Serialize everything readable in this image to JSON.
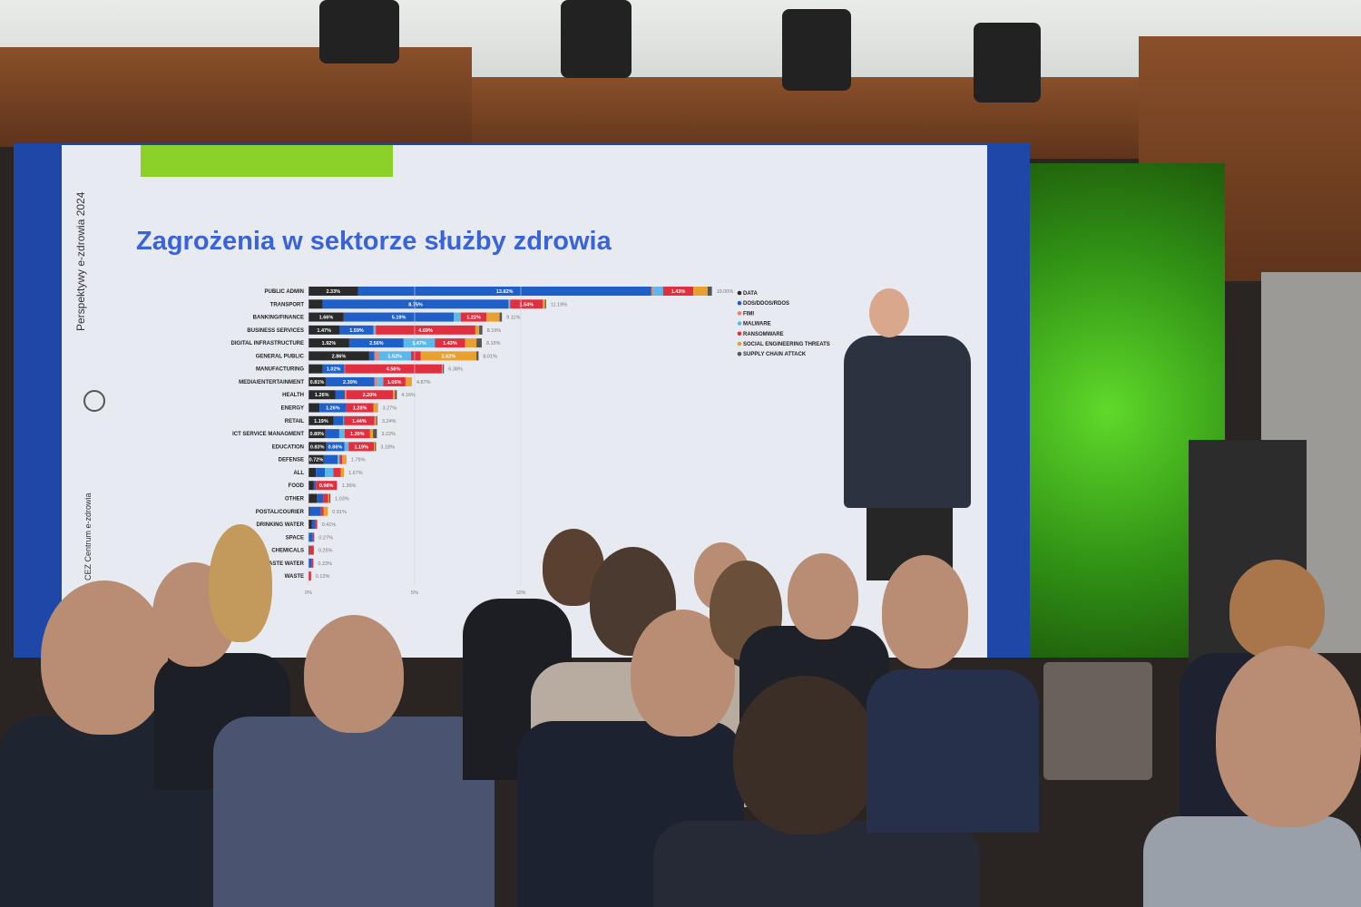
{
  "slide": {
    "title": "Zagrożenia w sektorze służby zdrowia",
    "side_text": "Perspektywy e-zdrowia 2024",
    "logo_text": "CEZ Centrum e-zdrowia"
  },
  "chart_data": {
    "type": "bar",
    "orientation": "horizontal",
    "stacked": true,
    "legend_position": "right",
    "categories": [
      "PUBLIC ADMIN",
      "TRANSPORT",
      "BANKING/FINANCE",
      "BUSINESS SERVICES",
      "DIGITAL INFRASTRUCTURE",
      "GENERAL PUBLIC",
      "MANUFACTURING",
      "MEDIA/ENTERTAINMENT",
      "HEALTH",
      "ENERGY",
      "RETAIL",
      "ICT SERVICE MANAGMENT",
      "EDUCATION",
      "DEFENSE",
      "ALL",
      "FOOD",
      "OTHER",
      "POSTAL/COURIER",
      "DRINKING WATER",
      "SPACE",
      "CHEMICALS",
      "WASTE WATER",
      "WASTE"
    ],
    "totals": [
      "19.00%",
      "11.19%",
      "9.11%",
      "8.19%",
      "8.16%",
      "8.01%",
      "6.38%",
      "4.87%",
      "4.16%",
      "3.27%",
      "3.24%",
      "3.22%",
      "3.18%",
      "1.79%",
      "1.67%",
      "1.36%",
      "1.03%",
      "0.91%",
      "0.41%",
      "0.27%",
      "0.25%",
      "0.23%",
      "0.12%"
    ],
    "series": [
      {
        "name": "DATA",
        "color": "#2a2a2a",
        "values": [
          2.33,
          0.67,
          1.66,
          1.47,
          1.92,
          2.86,
          0.67,
          0.81,
          1.26,
          0.52,
          1.19,
          0.8,
          0.83,
          0.72,
          0.35,
          0.25,
          0.4,
          0.07,
          0.15,
          0,
          0.05,
          0,
          0
        ]
      },
      {
        "name": "DOS/DDOS/RDOS",
        "color": "#1f5fc8",
        "values": [
          13.82,
          8.75,
          5.19,
          1.59,
          2.56,
          0.25,
          1.02,
          2.3,
          0.45,
          1.26,
          0.45,
          0.65,
          0.86,
          0.65,
          0.42,
          0.1,
          0.3,
          0.5,
          0.15,
          0.2,
          0,
          0.13,
          0
        ]
      },
      {
        "name": "FIMI",
        "color": "#e8836e",
        "values": [
          0.1,
          0,
          0,
          0.03,
          0,
          0.2,
          0.03,
          0.15,
          0.07,
          0,
          0,
          0,
          0,
          0,
          0,
          0,
          0,
          0,
          0,
          0,
          0,
          0,
          0
        ]
      },
      {
        "name": "MALWARE",
        "color": "#5bb8e8",
        "values": [
          0.45,
          0.08,
          0.32,
          0.08,
          1.47,
          1.52,
          0,
          0.26,
          0,
          0,
          0.03,
          0.25,
          0.2,
          0.1,
          0.4,
          0,
          0,
          0,
          0,
          0,
          0,
          0,
          0
        ]
      },
      {
        "name": "RANSOMWARE",
        "color": "#e03040",
        "values": [
          1.43,
          1.54,
          1.22,
          4.69,
          1.43,
          0.46,
          4.56,
          1.05,
          2.2,
          1.28,
          1.44,
          1.2,
          1.19,
          0.12,
          0.35,
          0.98,
          0.23,
          0.14,
          0.11,
          0.07,
          0.2,
          0.1,
          0.12
        ]
      },
      {
        "name": "SOCIAL ENGINEERING THREATS",
        "color": "#e8a030",
        "values": [
          0.67,
          0.1,
          0.61,
          0.18,
          0.53,
          2.62,
          0.05,
          0.3,
          0.1,
          0.2,
          0.08,
          0.14,
          0.05,
          0.2,
          0.15,
          0.03,
          0.05,
          0.2,
          0,
          0,
          0,
          0,
          0
        ]
      },
      {
        "name": "SUPPLY CHAIN ATTACK",
        "color": "#555555",
        "values": [
          0.2,
          0.05,
          0.11,
          0.15,
          0.25,
          0.1,
          0.05,
          0,
          0.08,
          0.01,
          0.05,
          0.18,
          0.05,
          0,
          0,
          0,
          0.05,
          0,
          0,
          0,
          0,
          0,
          0
        ]
      }
    ],
    "x_ticks": [
      "0%",
      "5%",
      "10%"
    ],
    "xlim": [
      0,
      19
    ]
  }
}
